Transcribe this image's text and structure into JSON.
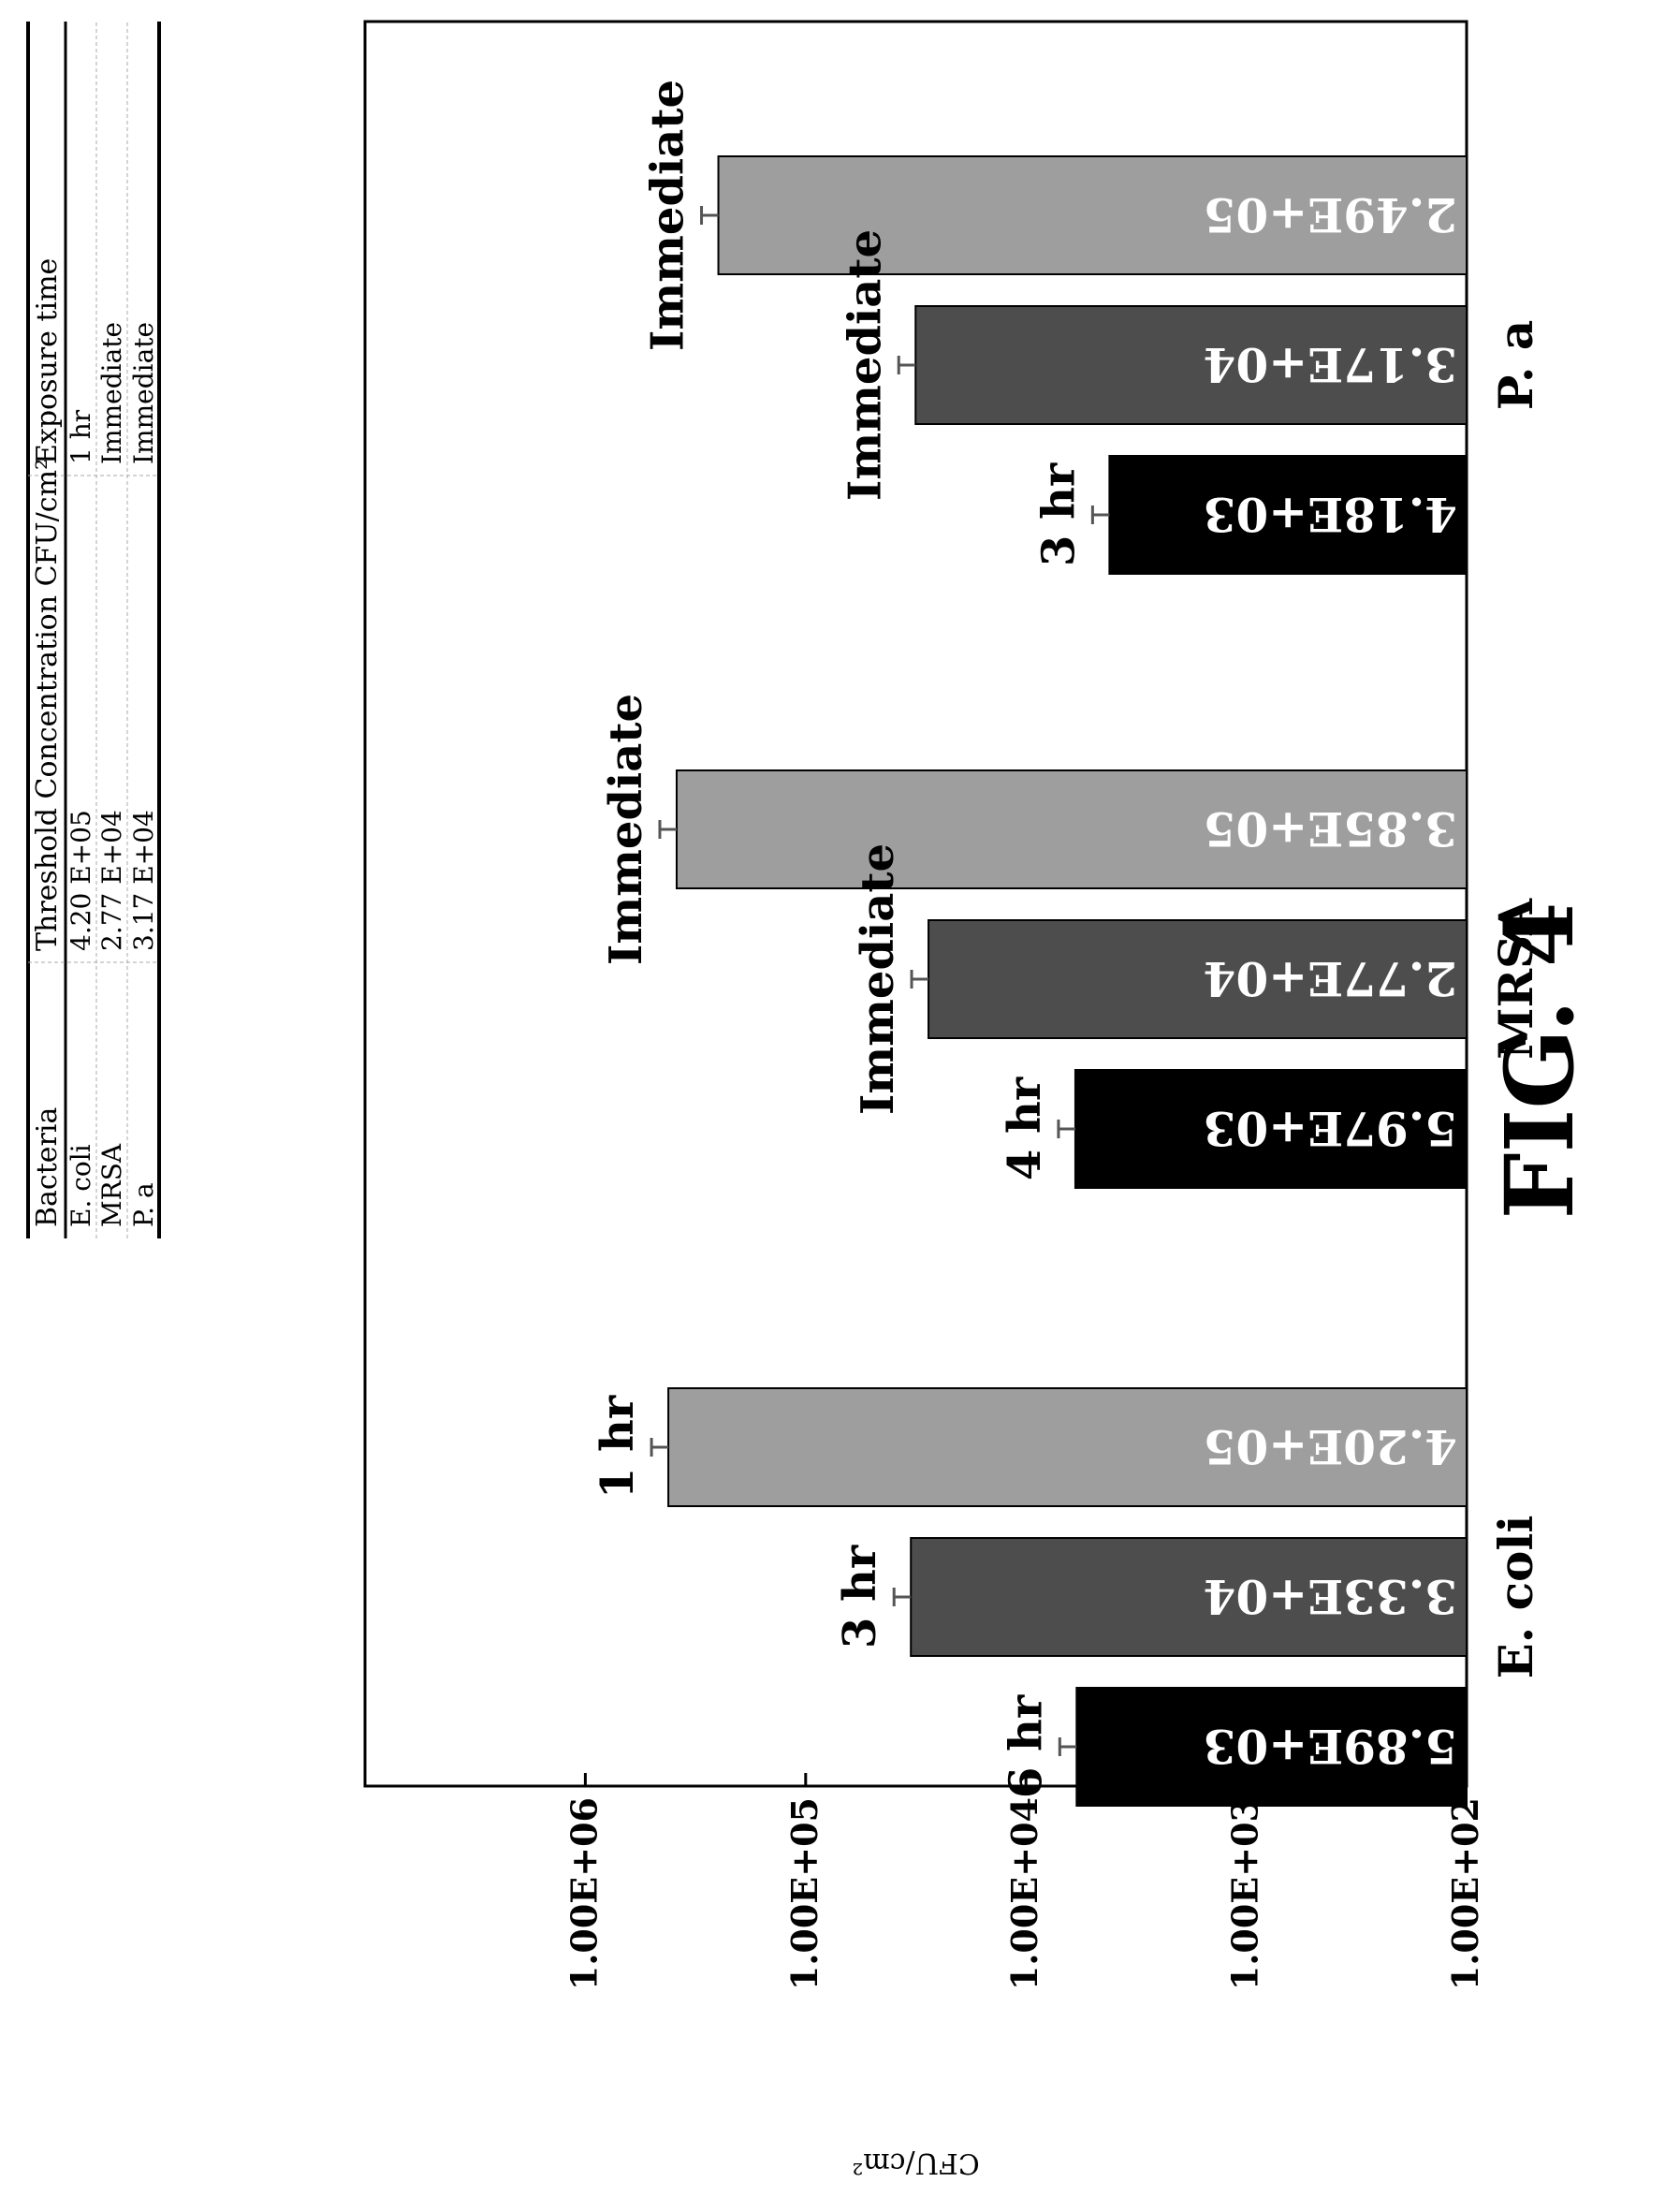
{
  "figure_label": "FIG. 4",
  "chart_data": {
    "type": "bar",
    "ylabel": "CFU/cm²",
    "yscale": "log",
    "ylim": [
      100,
      10000000
    ],
    "yticks": [
      "1.00E+02",
      "1.00E+03",
      "1.00E+04",
      "1.00E+05",
      "1.00E+06"
    ],
    "categories": [
      "E. coli",
      "MRSA",
      "P. a"
    ],
    "grid": false,
    "bars": [
      {
        "category": "E. coli",
        "value": 5890,
        "data_label": "5.89E+03",
        "time_label": "6 hr",
        "color": "#000000"
      },
      {
        "category": "E. coli",
        "value": 33300,
        "data_label": "3.33E+04",
        "time_label": "3 hr",
        "color": "#4d4d4d"
      },
      {
        "category": "E. coli",
        "value": 420000,
        "data_label": "4.20E+05",
        "time_label": "1 hr",
        "color": "#9e9e9e"
      },
      {
        "category": "MRSA",
        "value": 5970,
        "data_label": "5.97E+03",
        "time_label": "4 hr",
        "color": "#000000"
      },
      {
        "category": "MRSA",
        "value": 27700,
        "data_label": "2.77E+04",
        "time_label": "Immediate",
        "color": "#4d4d4d"
      },
      {
        "category": "MRSA",
        "value": 385000,
        "data_label": "3.85E+05",
        "time_label": "Immediate",
        "color": "#9e9e9e"
      },
      {
        "category": "P. a",
        "value": 4180,
        "data_label": "4.18E+03",
        "time_label": "3 hr",
        "color": "#000000"
      },
      {
        "category": "P. a",
        "value": 31700,
        "data_label": "3.17E+04",
        "time_label": "Immediate",
        "color": "#4d4d4d"
      },
      {
        "category": "P. a",
        "value": 249000,
        "data_label": "2.49E+05",
        "time_label": "Immediate",
        "color": "#9e9e9e"
      }
    ]
  },
  "table": {
    "headers": [
      "Bacteria",
      "Threshold Concentration CFU/cm²",
      "Exposure time"
    ],
    "rows": [
      [
        "E. coli",
        "4.20 E+05",
        "1 hr"
      ],
      [
        "MRSA",
        "2.77 E+04",
        "Immediate"
      ],
      [
        "P. a",
        "3.17 E+04",
        "Immediate"
      ]
    ]
  }
}
